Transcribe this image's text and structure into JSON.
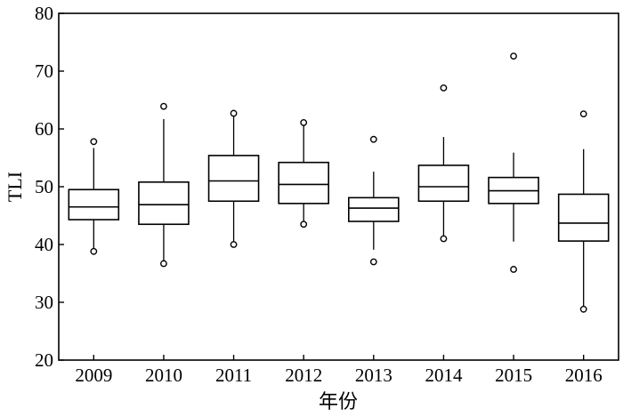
{
  "chart_data": {
    "type": "box",
    "xlabel": "年份",
    "ylabel": "TLI",
    "ylim": [
      20,
      80
    ],
    "yticks": [
      20,
      30,
      40,
      50,
      60,
      70,
      80
    ],
    "grid": false,
    "categories": [
      "2009",
      "2010",
      "2011",
      "2012",
      "2013",
      "2014",
      "2015",
      "2016"
    ],
    "boxes": [
      {
        "whisker_low": 39.0,
        "q1": 44.3,
        "median": 46.5,
        "q3": 49.5,
        "whisker_high": 56.7,
        "outliers": [
          38.8,
          57.8
        ]
      },
      {
        "whisker_low": 37.0,
        "q1": 43.5,
        "median": 46.9,
        "q3": 50.8,
        "whisker_high": 61.7,
        "outliers": [
          36.7,
          63.9
        ]
      },
      {
        "whisker_low": 40.2,
        "q1": 47.5,
        "median": 51.0,
        "q3": 55.4,
        "whisker_high": 62.4,
        "outliers": [
          40.0,
          62.7
        ]
      },
      {
        "whisker_low": 43.5,
        "q1": 47.1,
        "median": 50.4,
        "q3": 54.2,
        "whisker_high": 61.0,
        "outliers": [
          43.5,
          61.1
        ]
      },
      {
        "whisker_low": 39.1,
        "q1": 44.0,
        "median": 46.3,
        "q3": 48.1,
        "whisker_high": 52.6,
        "outliers": [
          37.0,
          58.2
        ]
      },
      {
        "whisker_low": 41.2,
        "q1": 47.5,
        "median": 50.0,
        "q3": 53.7,
        "whisker_high": 58.6,
        "outliers": [
          41.0,
          67.1
        ]
      },
      {
        "whisker_low": 40.5,
        "q1": 47.1,
        "median": 49.3,
        "q3": 51.6,
        "whisker_high": 55.9,
        "outliers": [
          35.7,
          72.6
        ]
      },
      {
        "whisker_low": 29.0,
        "q1": 40.6,
        "median": 43.7,
        "q3": 48.7,
        "whisker_high": 56.5,
        "outliers": [
          28.8,
          62.6
        ]
      }
    ]
  }
}
